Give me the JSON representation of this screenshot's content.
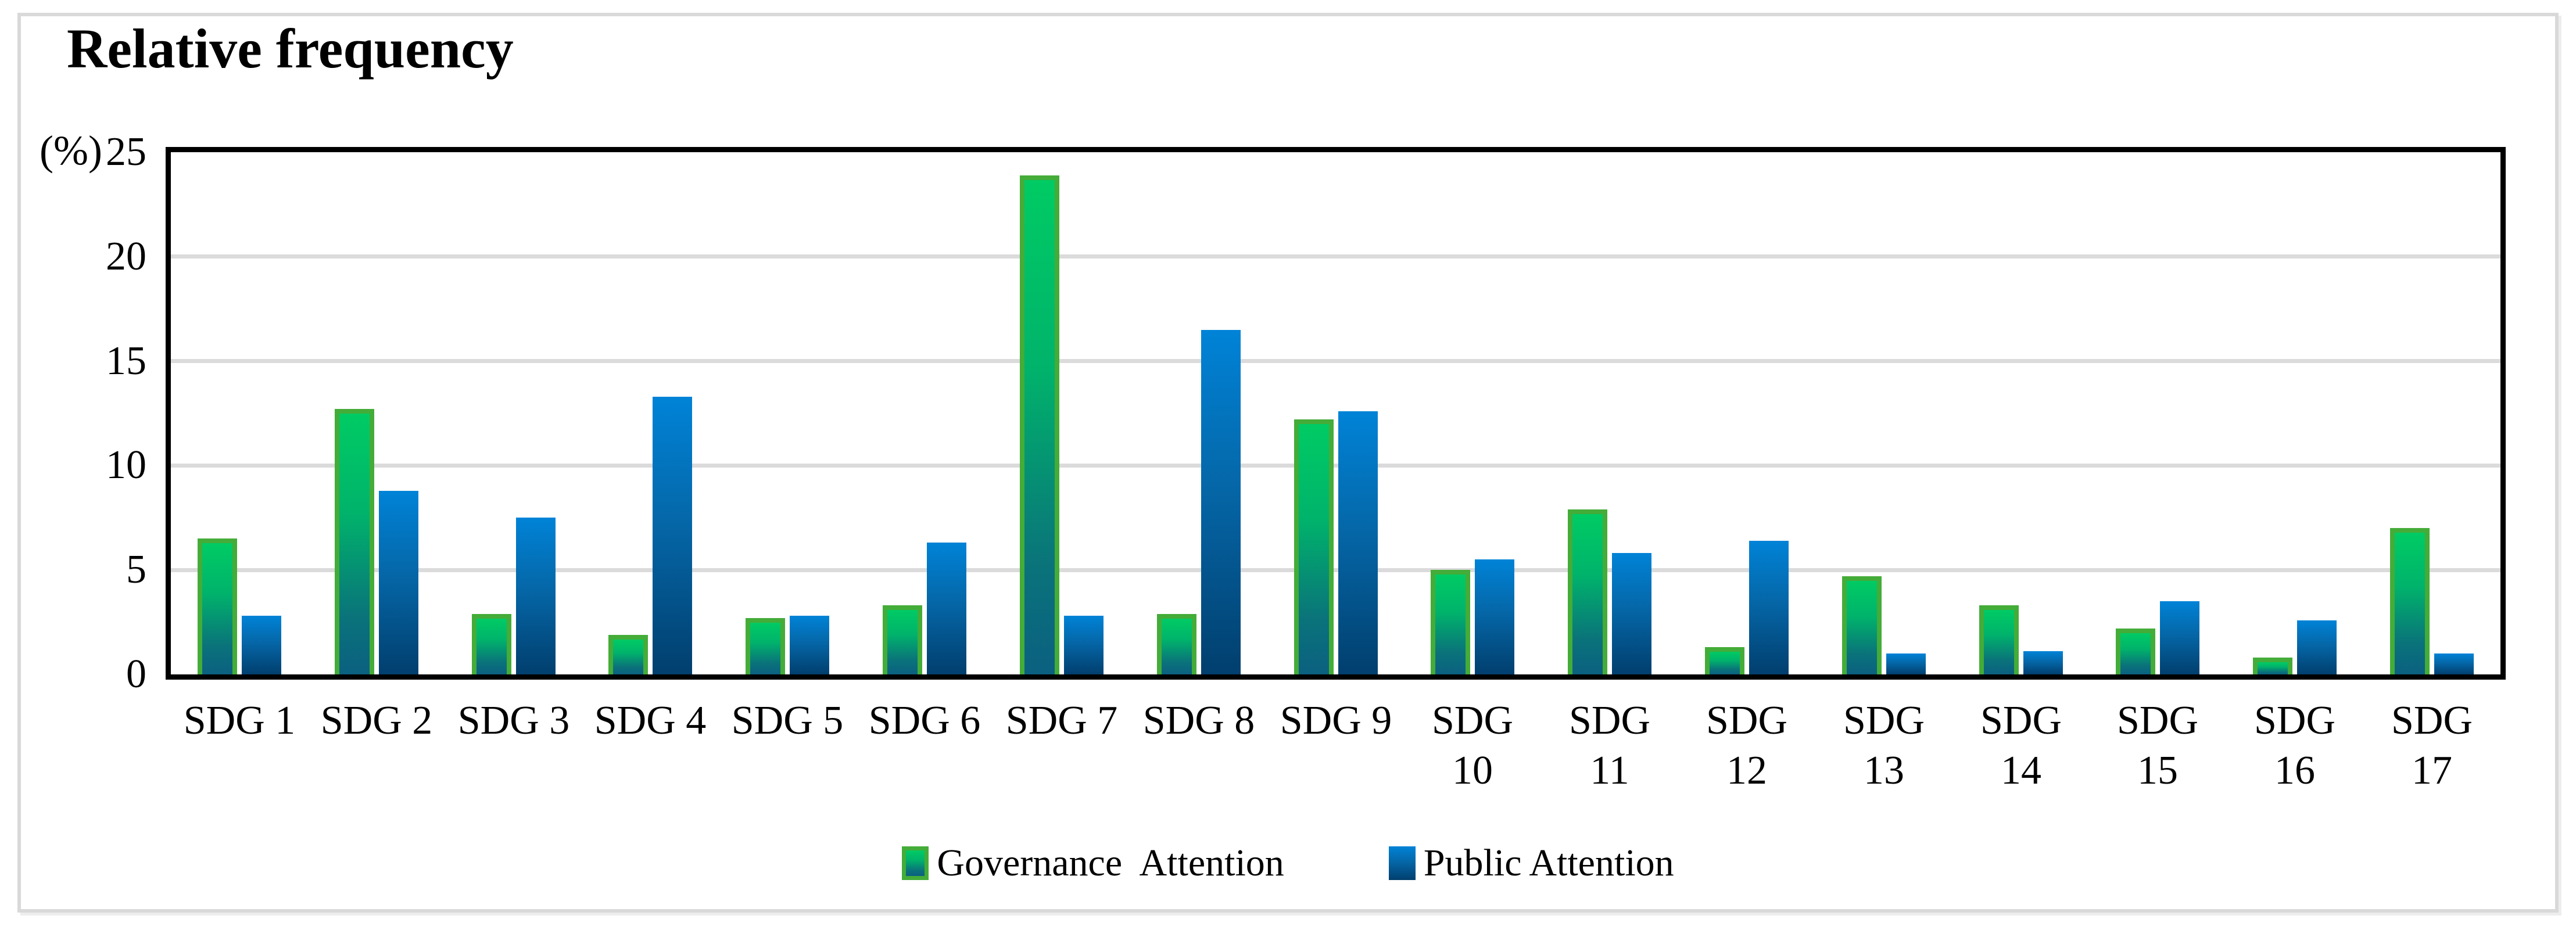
{
  "figure": {
    "title": "Relative frequency",
    "y_unit_label": "(%)"
  },
  "colors": {
    "governance_border": "#44AC38",
    "governance_fill_top": "#00CB64",
    "governance_fill_bottom": "#0B6080",
    "public_fill_top": "#0083D7",
    "public_fill_bottom": "#013F6E",
    "gridline": "#DBDBDB",
    "axis": "#000000",
    "frame_border": "#D9D9D9"
  },
  "chart_data": {
    "type": "bar",
    "title": "Relative frequency (%)",
    "xlabel": "",
    "ylabel": "Relative frequency (%)",
    "ylim": [
      0,
      25
    ],
    "yticks": [
      0,
      5,
      10,
      15,
      20,
      25
    ],
    "grid": true,
    "legend_position": "bottom",
    "categories": [
      "SDG 1",
      "SDG 2",
      "SDG 3",
      "SDG 4",
      "SDG 5",
      "SDG 6",
      "SDG 7",
      "SDG 8",
      "SDG 9",
      "SDG 10",
      "SDG 11",
      "SDG 12",
      "SDG 13",
      "SDG 14",
      "SDG 15",
      "SDG 16",
      "SDG 17"
    ],
    "series": [
      {
        "name": "Governance  Attention",
        "values": [
          6.5,
          12.7,
          2.9,
          1.9,
          2.7,
          3.3,
          23.9,
          2.9,
          12.2,
          5.0,
          7.9,
          1.3,
          4.7,
          3.3,
          2.2,
          0.8,
          7.0
        ]
      },
      {
        "name": "Public Attention",
        "values": [
          2.8,
          8.8,
          7.5,
          13.3,
          2.8,
          6.3,
          2.8,
          16.5,
          12.6,
          5.5,
          5.8,
          6.4,
          1.0,
          1.1,
          3.5,
          2.6,
          1.0
        ]
      }
    ]
  }
}
